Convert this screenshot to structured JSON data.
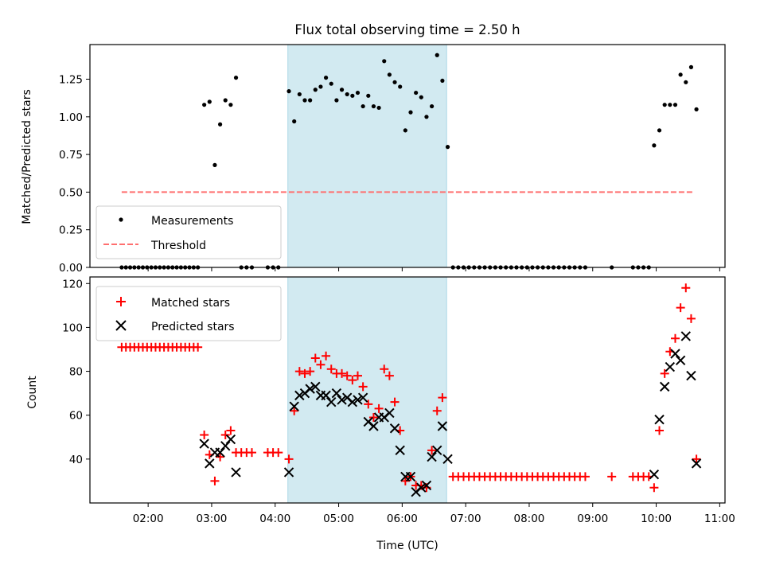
{
  "figure": {
    "title": "Flux total observing time = 2.50 h",
    "xlabel": "Time (UTC)",
    "colors": {
      "band": "#add8e6",
      "measure": "#000000",
      "threshold": "#ff6f6f",
      "matched": "#ff0000",
      "predicted": "#000000"
    }
  },
  "chart_data": [
    {
      "type": "scatter",
      "panel": "top",
      "ylabel": "Matched/Predicted stars",
      "xlim": [
        "01:05",
        "11:05"
      ],
      "ylim": [
        0,
        1.48
      ],
      "yticks": [
        "0.00",
        "0.25",
        "0.50",
        "0.75",
        "1.00",
        "1.25"
      ],
      "shaded_interval": [
        "04:12",
        "06:42"
      ],
      "legend_location": "lower-left",
      "legend": [
        "Measurements",
        "Threshold"
      ],
      "threshold": {
        "name": "Threshold",
        "value": 0.5,
        "x": [
          "01:35",
          "10:35"
        ]
      },
      "series": [
        {
          "name": "Measurements",
          "marker": "dot",
          "points": [
            [
              "01:35",
              0
            ],
            [
              "01:39",
              0
            ],
            [
              "01:43",
              0
            ],
            [
              "01:47",
              0
            ],
            [
              "01:51",
              0
            ],
            [
              "01:55",
              0
            ],
            [
              "01:59",
              0
            ],
            [
              "02:03",
              0
            ],
            [
              "02:07",
              0
            ],
            [
              "02:11",
              0
            ],
            [
              "02:15",
              0
            ],
            [
              "02:19",
              0
            ],
            [
              "02:23",
              0
            ],
            [
              "02:27",
              0
            ],
            [
              "02:31",
              0
            ],
            [
              "02:35",
              0
            ],
            [
              "02:39",
              0
            ],
            [
              "02:43",
              0
            ],
            [
              "02:47",
              0
            ],
            [
              "02:53",
              1.08
            ],
            [
              "02:58",
              1.1
            ],
            [
              "03:03",
              0.68
            ],
            [
              "03:08",
              0.95
            ],
            [
              "03:13",
              1.11
            ],
            [
              "03:18",
              1.08
            ],
            [
              "03:23",
              1.26
            ],
            [
              "03:28",
              0
            ],
            [
              "03:33",
              0
            ],
            [
              "03:38",
              0
            ],
            [
              "03:53",
              0
            ],
            [
              "03:58",
              0
            ],
            [
              "04:03",
              0
            ],
            [
              "04:13",
              1.17
            ],
            [
              "04:18",
              0.97
            ],
            [
              "04:23",
              1.15
            ],
            [
              "04:28",
              1.11
            ],
            [
              "04:33",
              1.11
            ],
            [
              "04:38",
              1.18
            ],
            [
              "04:43",
              1.2
            ],
            [
              "04:48",
              1.26
            ],
            [
              "04:53",
              1.22
            ],
            [
              "04:58",
              1.11
            ],
            [
              "05:03",
              1.18
            ],
            [
              "05:08",
              1.15
            ],
            [
              "05:13",
              1.14
            ],
            [
              "05:18",
              1.16
            ],
            [
              "05:23",
              1.07
            ],
            [
              "05:28",
              1.14
            ],
            [
              "05:33",
              1.07
            ],
            [
              "05:38",
              1.06
            ],
            [
              "05:43",
              1.37
            ],
            [
              "05:48",
              1.28
            ],
            [
              "05:53",
              1.23
            ],
            [
              "05:58",
              1.2
            ],
            [
              "06:03",
              0.91
            ],
            [
              "06:08",
              1.03
            ],
            [
              "06:13",
              1.16
            ],
            [
              "06:18",
              1.13
            ],
            [
              "06:23",
              1.0
            ],
            [
              "06:28",
              1.07
            ],
            [
              "06:33",
              1.41
            ],
            [
              "06:38",
              1.24
            ],
            [
              "06:43",
              0.8
            ],
            [
              "06:48",
              0
            ],
            [
              "06:53",
              0
            ],
            [
              "06:58",
              0
            ],
            [
              "07:03",
              0
            ],
            [
              "07:08",
              0
            ],
            [
              "07:13",
              0
            ],
            [
              "07:18",
              0
            ],
            [
              "07:23",
              0
            ],
            [
              "07:28",
              0
            ],
            [
              "07:33",
              0
            ],
            [
              "07:38",
              0
            ],
            [
              "07:43",
              0
            ],
            [
              "07:48",
              0
            ],
            [
              "07:53",
              0
            ],
            [
              "07:58",
              0
            ],
            [
              "08:03",
              0
            ],
            [
              "08:08",
              0
            ],
            [
              "08:13",
              0
            ],
            [
              "08:18",
              0
            ],
            [
              "08:23",
              0
            ],
            [
              "08:28",
              0
            ],
            [
              "08:33",
              0
            ],
            [
              "08:38",
              0
            ],
            [
              "08:43",
              0
            ],
            [
              "08:48",
              0
            ],
            [
              "08:53",
              0
            ],
            [
              "09:18",
              0
            ],
            [
              "09:38",
              0
            ],
            [
              "09:43",
              0
            ],
            [
              "09:48",
              0
            ],
            [
              "09:53",
              0
            ],
            [
              "09:58",
              0.81
            ],
            [
              "10:03",
              0.91
            ],
            [
              "10:08",
              1.08
            ],
            [
              "10:13",
              1.08
            ],
            [
              "10:18",
              1.08
            ],
            [
              "10:23",
              1.28
            ],
            [
              "10:28",
              1.23
            ],
            [
              "10:33",
              1.33
            ],
            [
              "10:38",
              1.05
            ]
          ]
        }
      ]
    },
    {
      "type": "scatter",
      "panel": "bottom",
      "ylabel": "Count",
      "xlim": [
        "01:05",
        "11:05"
      ],
      "ylim": [
        20,
        123
      ],
      "yticks": [
        "40",
        "60",
        "80",
        "100",
        "120"
      ],
      "xticks": [
        "02:00",
        "03:00",
        "04:00",
        "05:00",
        "06:00",
        "07:00",
        "08:00",
        "09:00",
        "10:00",
        "11:00"
      ],
      "shaded_interval": [
        "04:12",
        "06:42"
      ],
      "legend_location": "upper-left",
      "legend": [
        "Matched stars",
        "Predicted stars"
      ],
      "series": [
        {
          "name": "Matched stars",
          "marker": "plus",
          "points": [
            [
              "01:35",
              91
            ],
            [
              "01:39",
              91
            ],
            [
              "01:43",
              91
            ],
            [
              "01:47",
              91
            ],
            [
              "01:51",
              91
            ],
            [
              "01:55",
              91
            ],
            [
              "01:59",
              91
            ],
            [
              "02:03",
              91
            ],
            [
              "02:07",
              91
            ],
            [
              "02:11",
              91
            ],
            [
              "02:15",
              91
            ],
            [
              "02:19",
              91
            ],
            [
              "02:23",
              91
            ],
            [
              "02:27",
              91
            ],
            [
              "02:31",
              91
            ],
            [
              "02:35",
              91
            ],
            [
              "02:39",
              91
            ],
            [
              "02:43",
              91
            ],
            [
              "02:47",
              91
            ],
            [
              "02:53",
              51
            ],
            [
              "02:58",
              42
            ],
            [
              "03:03",
              30
            ],
            [
              "03:08",
              41
            ],
            [
              "03:13",
              51
            ],
            [
              "03:18",
              53
            ],
            [
              "03:23",
              43
            ],
            [
              "03:28",
              43
            ],
            [
              "03:33",
              43
            ],
            [
              "03:38",
              43
            ],
            [
              "03:53",
              43
            ],
            [
              "03:58",
              43
            ],
            [
              "04:03",
              43
            ],
            [
              "04:13",
              40
            ],
            [
              "04:18",
              62
            ],
            [
              "04:23",
              80
            ],
            [
              "04:28",
              79
            ],
            [
              "04:33",
              80
            ],
            [
              "04:38",
              86
            ],
            [
              "04:43",
              83
            ],
            [
              "04:48",
              87
            ],
            [
              "04:53",
              81
            ],
            [
              "04:58",
              79
            ],
            [
              "05:03",
              79
            ],
            [
              "05:08",
              78
            ],
            [
              "05:13",
              76
            ],
            [
              "05:18",
              78
            ],
            [
              "05:23",
              73
            ],
            [
              "05:28",
              65
            ],
            [
              "05:33",
              59
            ],
            [
              "05:38",
              63
            ],
            [
              "05:43",
              81
            ],
            [
              "05:48",
              78
            ],
            [
              "05:53",
              66
            ],
            [
              "05:58",
              53
            ],
            [
              "06:03",
              30
            ],
            [
              "06:08",
              32
            ],
            [
              "06:13",
              28
            ],
            [
              "06:18",
              28
            ],
            [
              "06:23",
              27
            ],
            [
              "06:28",
              44
            ],
            [
              "06:33",
              62
            ],
            [
              "06:38",
              68
            ],
            [
              "06:48",
              32
            ],
            [
              "06:53",
              32
            ],
            [
              "06:58",
              32
            ],
            [
              "07:03",
              32
            ],
            [
              "07:08",
              32
            ],
            [
              "07:13",
              32
            ],
            [
              "07:18",
              32
            ],
            [
              "07:23",
              32
            ],
            [
              "07:28",
              32
            ],
            [
              "07:33",
              32
            ],
            [
              "07:38",
              32
            ],
            [
              "07:43",
              32
            ],
            [
              "07:48",
              32
            ],
            [
              "07:53",
              32
            ],
            [
              "07:58",
              32
            ],
            [
              "08:03",
              32
            ],
            [
              "08:08",
              32
            ],
            [
              "08:13",
              32
            ],
            [
              "08:18",
              32
            ],
            [
              "08:23",
              32
            ],
            [
              "08:28",
              32
            ],
            [
              "08:33",
              32
            ],
            [
              "08:38",
              32
            ],
            [
              "08:43",
              32
            ],
            [
              "08:48",
              32
            ],
            [
              "08:53",
              32
            ],
            [
              "09:18",
              32
            ],
            [
              "09:38",
              32
            ],
            [
              "09:43",
              32
            ],
            [
              "09:48",
              32
            ],
            [
              "09:53",
              32
            ],
            [
              "09:58",
              27
            ],
            [
              "10:03",
              53
            ],
            [
              "10:08",
              79
            ],
            [
              "10:13",
              89
            ],
            [
              "10:18",
              95
            ],
            [
              "10:23",
              109
            ],
            [
              "10:28",
              118
            ],
            [
              "10:33",
              104
            ],
            [
              "10:38",
              40
            ]
          ]
        },
        {
          "name": "Predicted stars",
          "marker": "x",
          "points": [
            [
              "02:53",
              47
            ],
            [
              "02:58",
              38
            ],
            [
              "03:03",
              43
            ],
            [
              "03:08",
              43
            ],
            [
              "03:13",
              46
            ],
            [
              "03:18",
              49
            ],
            [
              "03:23",
              34
            ],
            [
              "04:13",
              34
            ],
            [
              "04:18",
              64
            ],
            [
              "04:23",
              69
            ],
            [
              "04:28",
              70
            ],
            [
              "04:33",
              72
            ],
            [
              "04:38",
              73
            ],
            [
              "04:43",
              69
            ],
            [
              "04:48",
              69
            ],
            [
              "04:53",
              66
            ],
            [
              "04:58",
              70
            ],
            [
              "05:03",
              67
            ],
            [
              "05:08",
              68
            ],
            [
              "05:13",
              66
            ],
            [
              "05:18",
              67
            ],
            [
              "05:23",
              68
            ],
            [
              "05:28",
              57
            ],
            [
              "05:33",
              55
            ],
            [
              "05:38",
              59
            ],
            [
              "05:43",
              59
            ],
            [
              "05:48",
              61
            ],
            [
              "05:53",
              54
            ],
            [
              "05:58",
              44
            ],
            [
              "06:03",
              32
            ],
            [
              "06:08",
              32
            ],
            [
              "06:13",
              25
            ],
            [
              "06:18",
              27
            ],
            [
              "06:23",
              28
            ],
            [
              "06:28",
              41
            ],
            [
              "06:33",
              44
            ],
            [
              "06:38",
              55
            ],
            [
              "06:43",
              40
            ],
            [
              "09:58",
              33
            ],
            [
              "10:03",
              58
            ],
            [
              "10:08",
              73
            ],
            [
              "10:13",
              82
            ],
            [
              "10:18",
              88
            ],
            [
              "10:23",
              85
            ],
            [
              "10:28",
              96
            ],
            [
              "10:33",
              78
            ],
            [
              "10:38",
              38
            ]
          ]
        }
      ]
    }
  ]
}
